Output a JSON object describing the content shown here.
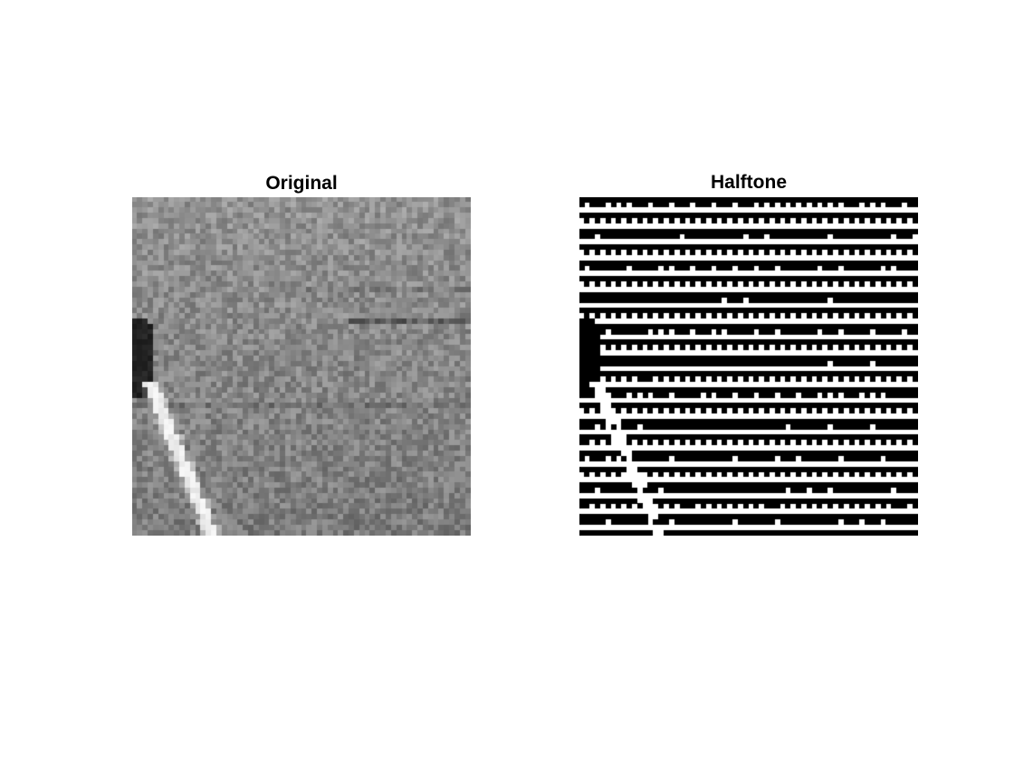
{
  "panels": {
    "original": {
      "title": "Original"
    },
    "halftone": {
      "title": "Halftone"
    }
  },
  "colors": {
    "background": "#ffffff",
    "title_text": "#000000",
    "field_gray": "#8c8c8c",
    "halftone_black": "#000000",
    "halftone_white": "#ffffff"
  }
}
